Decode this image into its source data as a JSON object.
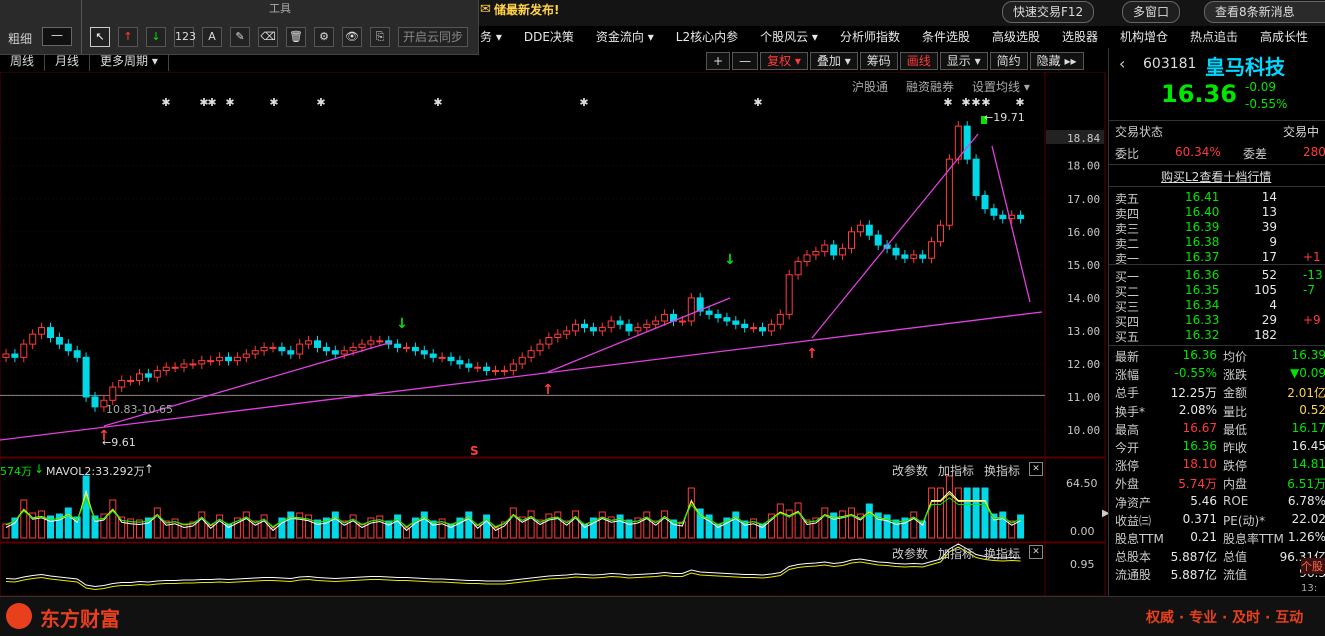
{
  "toolbar": {
    "panel_title": "工具",
    "thickness_label": "粗细",
    "line_style": "—",
    "tools": [
      "↖",
      "↑",
      "↓",
      "123",
      "A",
      "✎",
      "⌫",
      "🗑",
      "⚙",
      "👁",
      "⎘"
    ],
    "sync_label": "开启云同步",
    "notice": "储最新发布!",
    "quick_trade": "快速交易F12",
    "multi_window": "多窗口",
    "news": "查看8条新消息"
  },
  "menu": {
    "items": [
      "务 ▾",
      "DDE决策",
      "资金流向 ▾",
      "L2核心内参",
      "个股风云 ▾",
      "分析师指数",
      "条件选股",
      "高级选股",
      "选股器",
      "机构增仓",
      "热点追击",
      "高成长性"
    ]
  },
  "period_bar": {
    "items": [
      "周线",
      "月线",
      "更多周期 ▾"
    ]
  },
  "chart_tools": {
    "plus": "+",
    "minus": "—",
    "fuquan": "复权 ▾",
    "overlay": "叠加 ▾",
    "chips": "筹码",
    "draw": "画线",
    "display": "显示 ▾",
    "simple": "简约",
    "hide": "隐藏 ▸▸"
  },
  "subtabs": [
    "沪股通",
    "融资融券",
    "设置均线 ▾"
  ],
  "main_chart": {
    "y_labels": [
      "18.84",
      "18.00",
      "17.00",
      "16.00",
      "15.00",
      "14.00",
      "13.00",
      "12.00",
      "11.00",
      "10.00"
    ],
    "high_marker": "←19.71",
    "low_marker": "←9.61",
    "range_label": "10.83-10.65",
    "s_marker": "S"
  },
  "volume_panel": {
    "legend_left": "574万",
    "mavol2": "MAVOL2:33.292万",
    "buttons": [
      "改参数",
      "加指标",
      "换指标"
    ],
    "close": "✕",
    "y_top": "64.50",
    "y_bottom": "0.00"
  },
  "indicator_panel": {
    "buttons": [
      "改参数",
      "加指标",
      "换指标"
    ],
    "close": "✕",
    "y_top": "0.95"
  },
  "quote": {
    "code": "603181",
    "name": "皇马科技",
    "price": "16.36",
    "change": "-0.09",
    "change_pct": "-0.55%",
    "status_label": "交易状态",
    "status_value": "交易中",
    "weibi_label": "委比",
    "weibi_value": "60.34%",
    "weicha_label": "委差",
    "weicha_value": "280",
    "l2_link": "购买L2查看十档行情",
    "asks": [
      {
        "label": "卖五",
        "price": "16.41",
        "vol": "14",
        "chg": ""
      },
      {
        "label": "卖四",
        "price": "16.40",
        "vol": "13",
        "chg": ""
      },
      {
        "label": "卖三",
        "price": "16.39",
        "vol": "39",
        "chg": ""
      },
      {
        "label": "卖二",
        "price": "16.38",
        "vol": "9",
        "chg": ""
      },
      {
        "label": "卖一",
        "price": "16.37",
        "vol": "17",
        "chg": "+1"
      }
    ],
    "bids": [
      {
        "label": "买一",
        "price": "16.36",
        "vol": "52",
        "chg": "-13"
      },
      {
        "label": "买二",
        "price": "16.35",
        "vol": "105",
        "chg": "-7"
      },
      {
        "label": "买三",
        "price": "16.34",
        "vol": "4",
        "chg": ""
      },
      {
        "label": "买四",
        "price": "16.33",
        "vol": "29",
        "chg": "+9"
      },
      {
        "label": "买五",
        "price": "16.32",
        "vol": "182",
        "chg": ""
      }
    ],
    "stats": [
      {
        "l1": "最新",
        "v1": "16.36",
        "c1": "green",
        "l2": "均价",
        "v2": "16.39",
        "c2": "green"
      },
      {
        "l1": "涨幅",
        "v1": "-0.55%",
        "c1": "green",
        "l2": "涨跌",
        "v2": "▼0.09",
        "c2": "green"
      },
      {
        "l1": "总手",
        "v1": "12.25万",
        "c1": "white",
        "l2": "金额",
        "v2": "2.01亿",
        "c2": "yellow"
      },
      {
        "l1": "换手*",
        "v1": "2.08%",
        "c1": "white",
        "l2": "量比",
        "v2": "0.52",
        "c2": "yellow"
      },
      {
        "l1": "最高",
        "v1": "16.67",
        "c1": "red",
        "l2": "最低",
        "v2": "16.17",
        "c2": "green"
      },
      {
        "l1": "今开",
        "v1": "16.36",
        "c1": "green",
        "l2": "昨收",
        "v2": "16.45",
        "c2": "white"
      },
      {
        "l1": "涨停",
        "v1": "18.10",
        "c1": "red",
        "l2": "跌停",
        "v2": "14.81",
        "c2": "green"
      },
      {
        "l1": "外盘",
        "v1": "5.74万",
        "c1": "red",
        "l2": "内盘",
        "v2": "6.51万",
        "c2": "green"
      },
      {
        "l1": "净资产",
        "v1": "5.46",
        "c1": "white",
        "l2": "ROE",
        "v2": "6.78%",
        "c2": "white"
      },
      {
        "l1": "收益㈢",
        "v1": "0.371",
        "c1": "white",
        "l2": "PE(动)*",
        "v2": "22.02",
        "c2": "white"
      },
      {
        "l1": "股息TTM",
        "v1": "0.21",
        "c1": "white",
        "l2": "股息率TTM",
        "v2": "1.26%",
        "c2": "white"
      },
      {
        "l1": "总股本",
        "v1": "5.887亿",
        "c1": "white",
        "l2": "总值",
        "v2": "96.31亿",
        "c2": "white"
      },
      {
        "l1": "流通股",
        "v1": "5.887亿",
        "c1": "white",
        "l2": "流值",
        "v2": "96.3",
        "c2": "white"
      }
    ],
    "time": "13:",
    "corner_tab": "个股"
  },
  "bottom": {
    "logo": "东方财富",
    "slogan": "权威 · 专业 · 及时 · 互动"
  },
  "colors": {
    "up": "#ff3b3b",
    "down": "#00d8e8",
    "trend": "#e040e0",
    "accent_green": "#00e600",
    "accent_yellow": "#ffd24a",
    "brand": "#e8401c"
  }
}
